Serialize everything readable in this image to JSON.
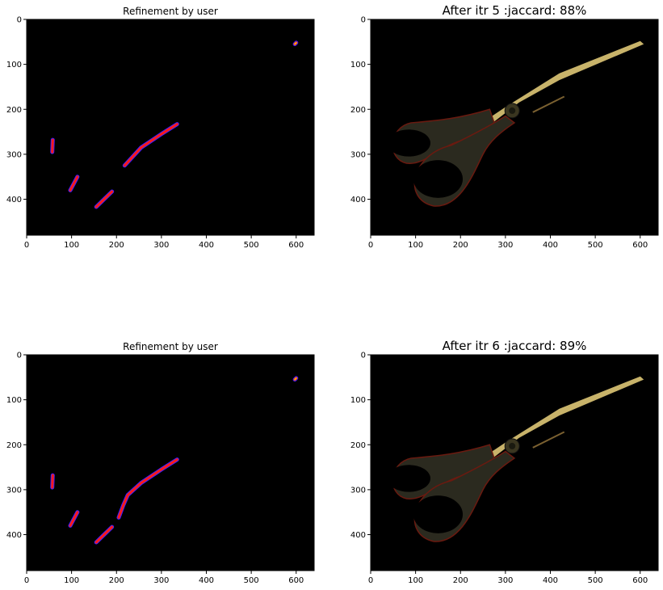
{
  "figure": {
    "panels": [
      {
        "title": "Refinement by user",
        "title_size": "small",
        "kind": "scribble"
      },
      {
        "title": "After itr 5 :jaccard: 88%",
        "title_size": "large",
        "kind": "segmentation",
        "jaccard_percent": 88,
        "iteration": 5
      },
      {
        "title": "Refinement by user",
        "title_size": "small",
        "kind": "scribble"
      },
      {
        "title": "After itr 6 :jaccard: 89%",
        "title_size": "large",
        "kind": "segmentation",
        "jaccard_percent": 89,
        "iteration": 6
      }
    ]
  },
  "chart_data": [
    {
      "type": "heatmap",
      "title": "Refinement by user",
      "xlim": [
        0,
        640
      ],
      "ylim": [
        480,
        0
      ],
      "x_ticks": [
        0,
        100,
        200,
        300,
        400,
        500,
        600
      ],
      "y_ticks": [
        0,
        100,
        200,
        300,
        400
      ],
      "strokes": [
        {
          "points": [
            [
              58,
              268
            ],
            [
              57,
              295
            ]
          ]
        },
        {
          "points": [
            [
              97,
              380
            ],
            [
              113,
              350
            ]
          ]
        },
        {
          "points": [
            [
              155,
              417
            ],
            [
              190,
              383
            ]
          ]
        },
        {
          "points": [
            [
              218,
              325
            ],
            [
              255,
              285
            ],
            [
              300,
              255
            ],
            [
              335,
              233
            ]
          ]
        },
        {
          "points": [
            [
              597,
              55
            ],
            [
              600,
              52
            ]
          ]
        }
      ],
      "colors": {
        "background": "#000000",
        "outer": "#3a1fff",
        "inner": "#ff1a1a",
        "core": "#ffb000"
      }
    },
    {
      "type": "heatmap",
      "title": "After itr 5 :jaccard: 88%",
      "xlim": [
        0,
        640
      ],
      "ylim": [
        480,
        0
      ],
      "x_ticks": [
        0,
        100,
        200,
        300,
        400,
        500,
        600
      ],
      "y_ticks": [
        0,
        100,
        200,
        300,
        400
      ],
      "colors": {
        "background": "#000000",
        "blade": "#c8b36a",
        "handle": "#2b2a1f",
        "handle_edge": "#6a1a10",
        "screw": "#3a3620"
      }
    },
    {
      "type": "heatmap",
      "title": "Refinement by user",
      "xlim": [
        0,
        640
      ],
      "ylim": [
        480,
        0
      ],
      "x_ticks": [
        0,
        100,
        200,
        300,
        400,
        500,
        600
      ],
      "y_ticks": [
        0,
        100,
        200,
        300,
        400
      ],
      "strokes": [
        {
          "points": [
            [
              58,
              268
            ],
            [
              57,
              295
            ]
          ]
        },
        {
          "points": [
            [
              97,
              380
            ],
            [
              113,
              350
            ]
          ]
        },
        {
          "points": [
            [
              155,
              417
            ],
            [
              190,
              383
            ]
          ]
        },
        {
          "points": [
            [
              205,
              362
            ],
            [
              215,
              335
            ],
            [
              225,
              312
            ],
            [
              255,
              285
            ],
            [
              300,
              255
            ],
            [
              335,
              233
            ]
          ]
        },
        {
          "points": [
            [
              597,
              55
            ],
            [
              600,
              52
            ]
          ]
        }
      ],
      "colors": {
        "background": "#000000",
        "outer": "#3a1fff",
        "inner": "#ff1a1a",
        "core": "#ffb000"
      }
    },
    {
      "type": "heatmap",
      "title": "After itr 6 :jaccard: 89%",
      "xlim": [
        0,
        640
      ],
      "ylim": [
        480,
        0
      ],
      "x_ticks": [
        0,
        100,
        200,
        300,
        400,
        500,
        600
      ],
      "y_ticks": [
        0,
        100,
        200,
        300,
        400
      ],
      "colors": {
        "background": "#000000",
        "blade": "#c8b36a",
        "handle": "#2b2a1f",
        "handle_edge": "#6a1a10",
        "screw": "#3a3620"
      }
    }
  ]
}
